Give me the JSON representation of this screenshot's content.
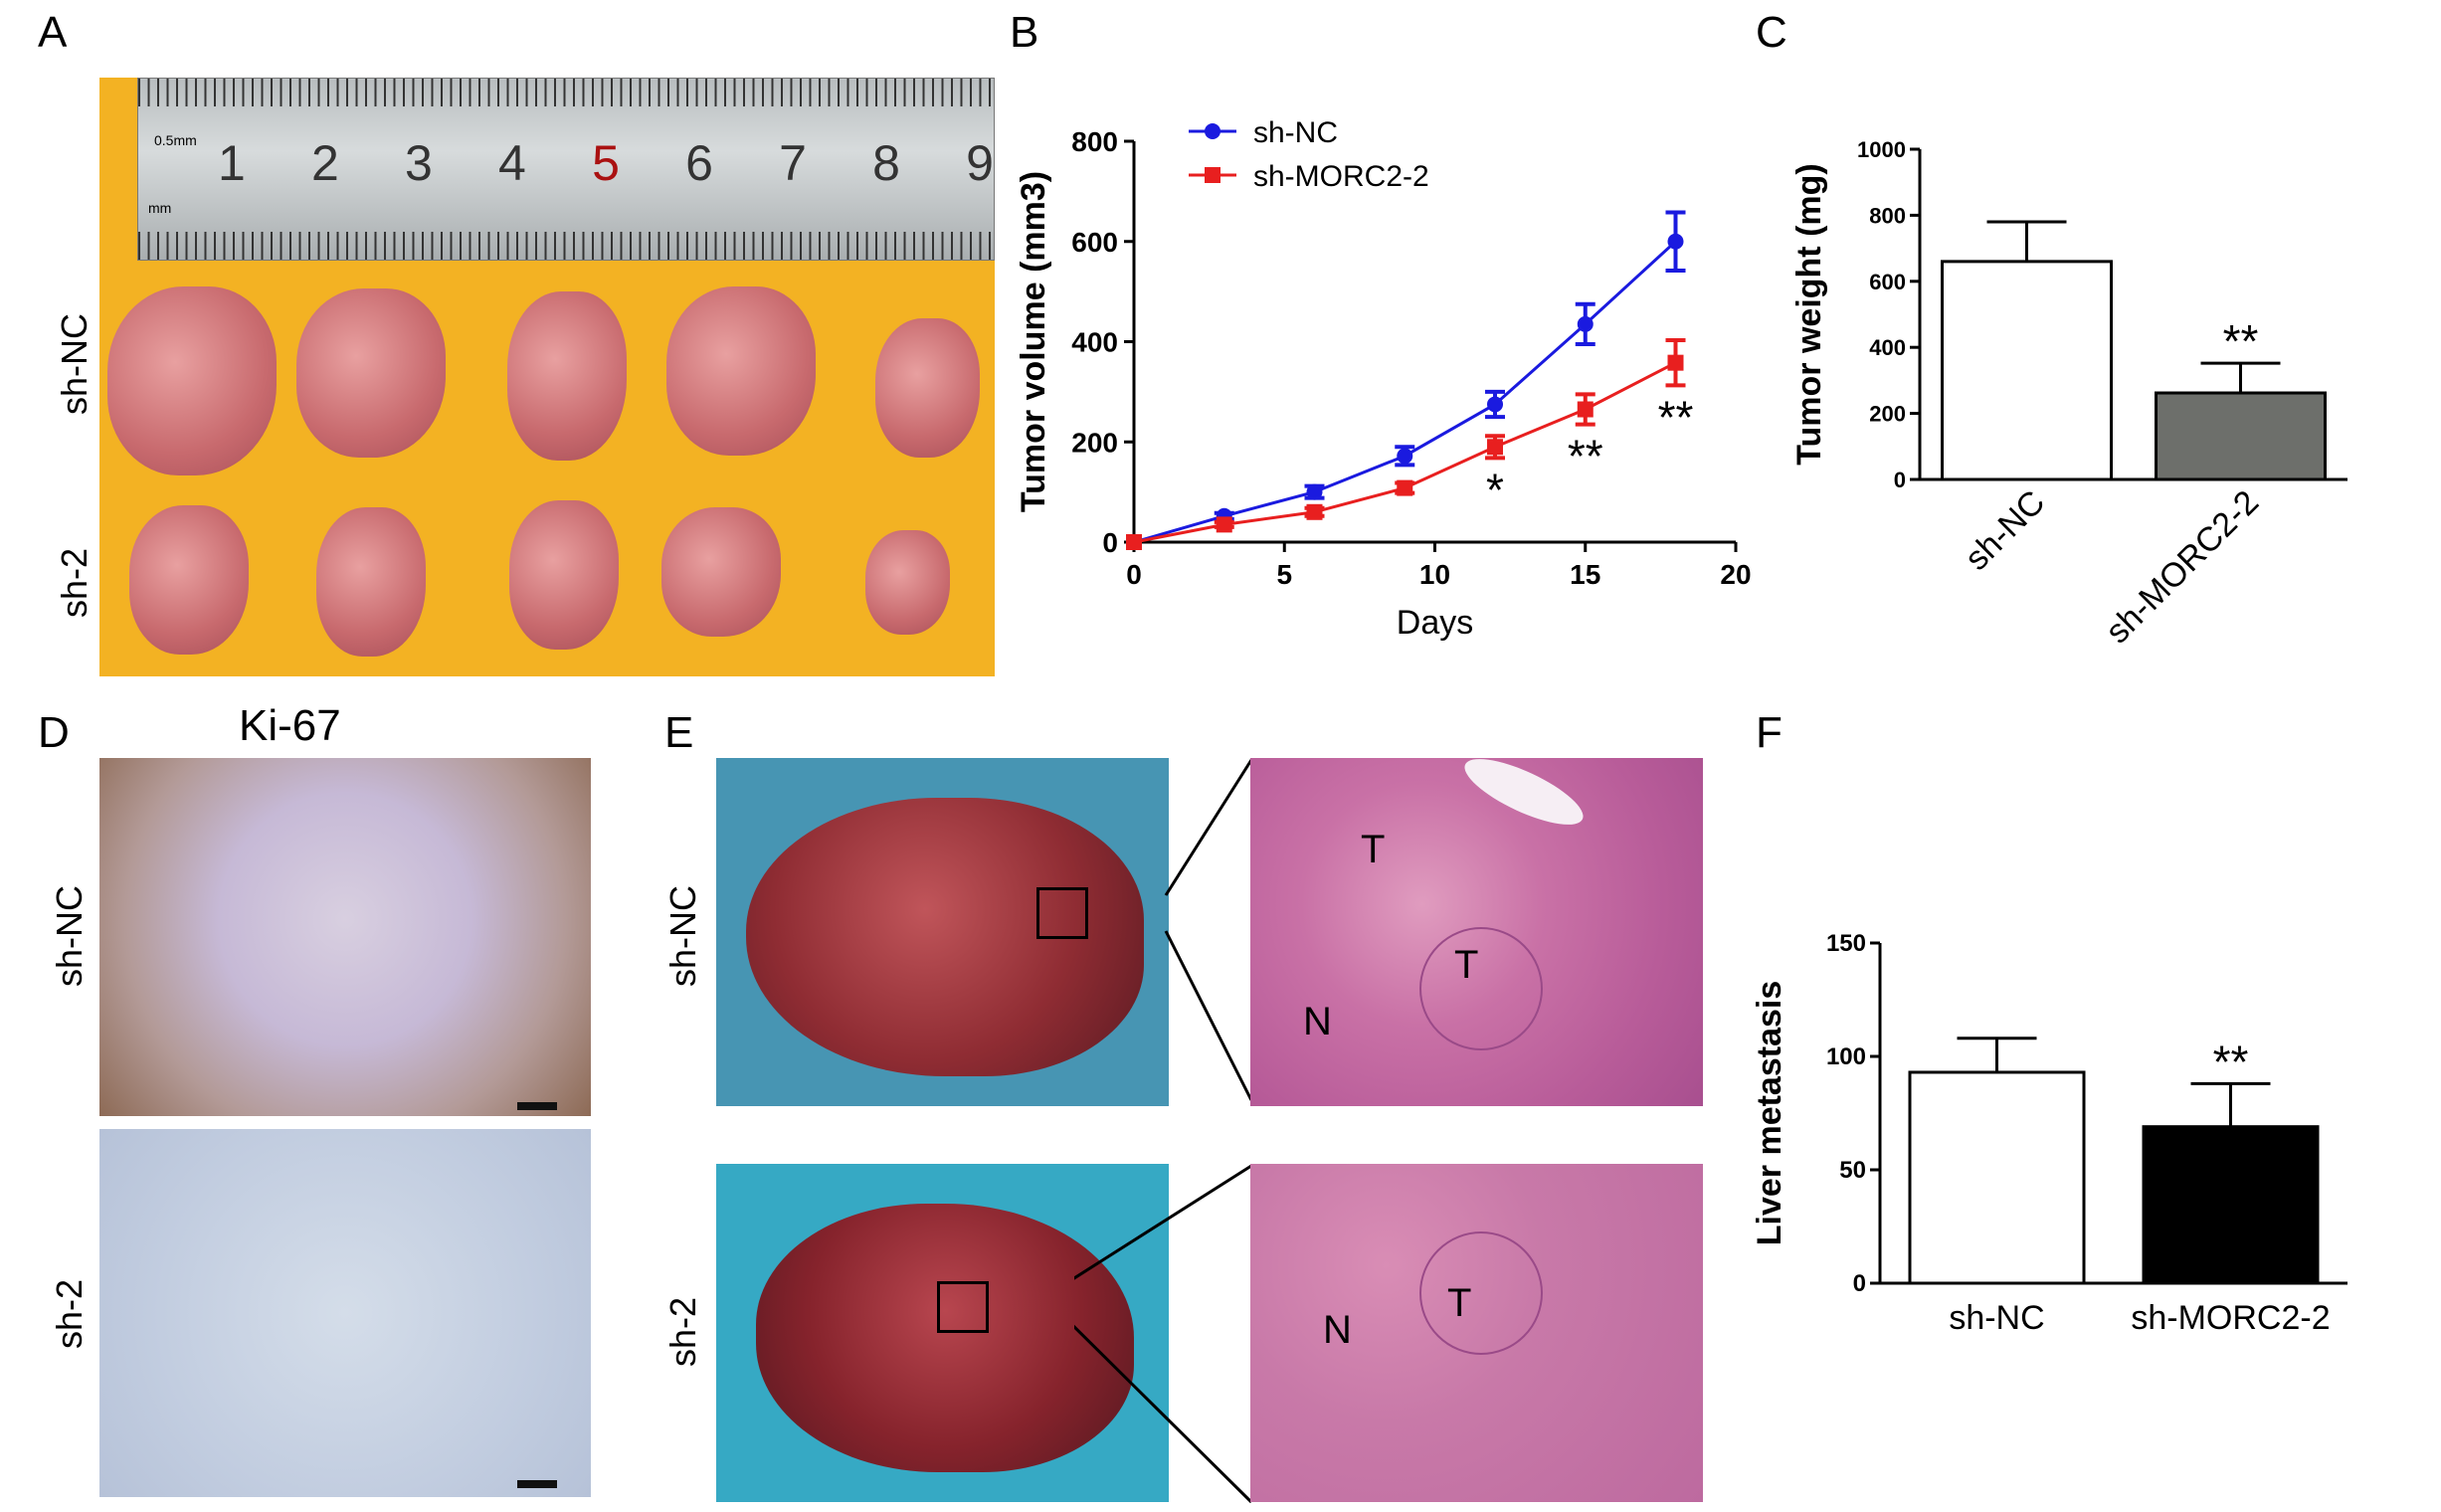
{
  "panel_letters": [
    "A",
    "B",
    "C",
    "D",
    "E",
    "F"
  ],
  "panelA": {
    "group_labels": [
      "sh-NC",
      "sh-2"
    ],
    "ruler_numbers": [
      "1",
      "2",
      "3",
      "4",
      "5",
      "6",
      "7",
      "8",
      "9"
    ],
    "ruler_small": [
      "0.5mm",
      "mm"
    ]
  },
  "panelD": {
    "title": "Ki-67",
    "group_labels": [
      "sh-NC",
      "sh-2"
    ],
    "scale_bar": "50 μm"
  },
  "panelE": {
    "group_labels": [
      "sh-NC",
      "sh-2"
    ],
    "markers": [
      "T",
      "T",
      "N",
      "N",
      "T"
    ]
  },
  "chart_data": [
    {
      "type": "line",
      "panel": "B",
      "xlabel": "Days",
      "ylabel": "Tumor volume (mm3)",
      "xlim": [
        0,
        20
      ],
      "ylim": [
        0,
        800
      ],
      "xticks": [
        0,
        5,
        10,
        15,
        20
      ],
      "yticks": [
        0,
        200,
        400,
        600,
        800
      ],
      "legend_position": "top-left",
      "series": [
        {
          "name": "sh-NC",
          "color": "#1a1adf",
          "marker": "circle",
          "x": [
            0,
            3,
            6,
            9,
            12,
            15,
            18
          ],
          "y": [
            0,
            52,
            100,
            172,
            275,
            435,
            600
          ],
          "err": [
            0,
            6,
            12,
            18,
            25,
            40,
            58
          ]
        },
        {
          "name": "sh-MORC2-2",
          "color": "#e81f1f",
          "marker": "square",
          "x": [
            0,
            3,
            6,
            9,
            12,
            15,
            18
          ],
          "y": [
            0,
            35,
            60,
            108,
            190,
            265,
            358
          ],
          "err": [
            0,
            5,
            8,
            10,
            22,
            30,
            45
          ]
        }
      ],
      "annotations": [
        {
          "x": 12,
          "text": "*"
        },
        {
          "x": 15,
          "text": "**"
        },
        {
          "x": 18,
          "text": "**"
        }
      ]
    },
    {
      "type": "bar",
      "panel": "C",
      "categories": [
        "sh-NC",
        "sh-MORC2-2"
      ],
      "values": [
        660,
        262
      ],
      "errors": [
        120,
        90
      ],
      "colors": [
        "#ffffff",
        "#6d6f6b"
      ],
      "ylabel": "Tumor weight (mg)",
      "ylim": [
        0,
        1000
      ],
      "yticks": [
        0,
        200,
        400,
        600,
        800,
        1000
      ],
      "annotations": [
        {
          "category": "sh-MORC2-2",
          "text": "**"
        }
      ]
    },
    {
      "type": "bar",
      "panel": "F",
      "categories": [
        "sh-NC",
        "sh-MORC2-2"
      ],
      "values": [
        93,
        69
      ],
      "errors": [
        15,
        19
      ],
      "colors": [
        "#ffffff",
        "#000000"
      ],
      "ylabel": "Liver metastasis",
      "ylim": [
        0,
        150
      ],
      "yticks": [
        0,
        50,
        100,
        150
      ],
      "annotations": [
        {
          "category": "sh-MORC2-2",
          "text": "**"
        }
      ]
    }
  ]
}
